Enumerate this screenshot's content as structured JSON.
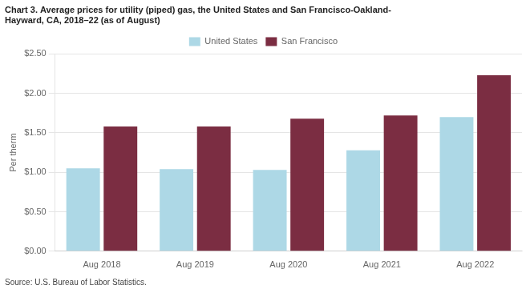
{
  "chart_data": {
    "type": "bar",
    "title": "Chart 3. Average prices for utility (piped) gas, the United States and San Francisco-Oakland-\nHayward, CA, 2018–22 (as of August)",
    "ylabel": "Per therm",
    "annotations": [
      "Source: U.S. Bureau of Labor Statistics."
    ],
    "categories": [
      "Aug 2018",
      "Aug 2019",
      "Aug 2020",
      "Aug 2021",
      "Aug 2022"
    ],
    "series": [
      {
        "name": "United States",
        "color": "#add8e6",
        "values": [
          1.05,
          1.04,
          1.03,
          1.28,
          1.7
        ]
      },
      {
        "name": "San Francisco",
        "color": "#7b2d42",
        "values": [
          1.58,
          1.58,
          1.68,
          1.72,
          2.23
        ]
      }
    ],
    "ylim": [
      0,
      2.5
    ],
    "yticks": [
      {
        "value": 0,
        "label": "$0.00"
      },
      {
        "value": 0.5,
        "label": "$0.50"
      },
      {
        "value": 1,
        "label": "$1.00"
      },
      {
        "value": 1.5,
        "label": "$1.50"
      },
      {
        "value": 2,
        "label": "$2.00"
      },
      {
        "value": 2.5,
        "label": "$2.50"
      }
    ],
    "grid": true,
    "legend": "top"
  }
}
